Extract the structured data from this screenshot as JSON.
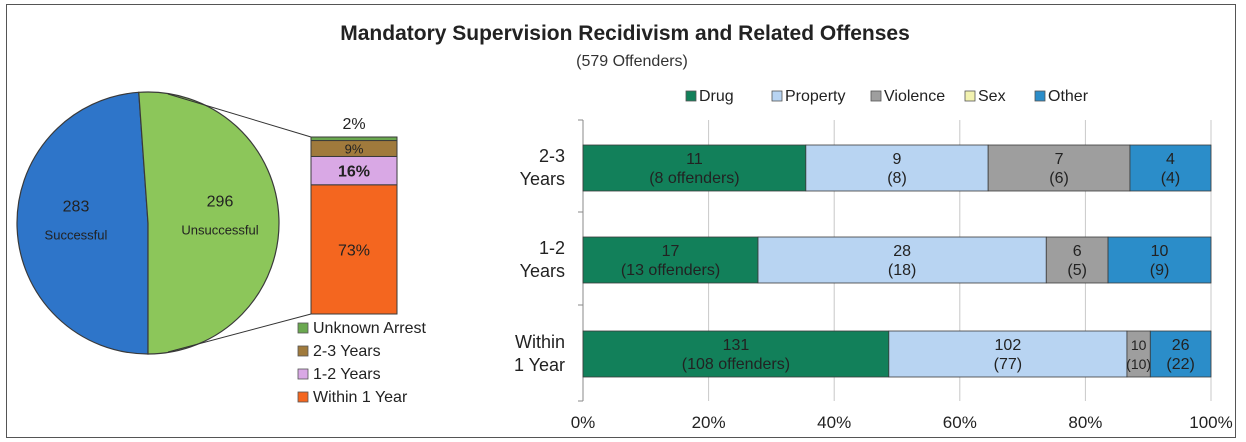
{
  "chart_data": [
    {
      "type": "pie",
      "title": "Mandatory Supervision Recidivism and Related Offenses",
      "subtitle": "(579 Offenders)",
      "slices": [
        {
          "label": "Successful",
          "value": 283,
          "color": "#2e75c9"
        },
        {
          "label": "Unsuccessful",
          "value": 296,
          "color": "#8cc65a"
        }
      ]
    },
    {
      "type": "bar",
      "stacked": true,
      "segments": [
        {
          "name": "Within 1 Year",
          "value": 73,
          "label": "73%",
          "color": "#f4661f"
        },
        {
          "name": "1-2 Years",
          "value": 16,
          "label": "16%",
          "color": "#d9a8e5"
        },
        {
          "name": "2-3 Years",
          "value": 9,
          "label": "9%",
          "color": "#a07a3c"
        },
        {
          "name": "Unknown Arrest",
          "value": 2,
          "label": "2%",
          "color": "#6aa84f"
        }
      ],
      "legend": [
        "Unknown Arrest",
        "2-3 Years",
        "1-2 Years",
        "Within 1 Year"
      ]
    },
    {
      "type": "bar",
      "orientation": "horizontal",
      "stacked": "percent",
      "legend_position": "top",
      "series": [
        {
          "name": "Drug",
          "color": "#12805a"
        },
        {
          "name": "Property",
          "color": "#b8d4f2"
        },
        {
          "name": "Violence",
          "color": "#9e9e9e"
        },
        {
          "name": "Sex",
          "color": "#f2f2b0"
        },
        {
          "name": "Other",
          "color": "#2b8dc9"
        }
      ],
      "categories": [
        {
          "label_lines": [
            "2-3",
            "Years"
          ],
          "segments": [
            {
              "series": "Drug",
              "value": 11,
              "line1": "11",
              "line2": "(8 offenders)"
            },
            {
              "series": "Property",
              "value": 9,
              "line1": "9",
              "line2": "(8)"
            },
            {
              "series": "Violence",
              "value": 7,
              "line1": "7",
              "line2": "(6)"
            },
            {
              "series": "Sex",
              "value": 0,
              "line1": "",
              "line2": ""
            },
            {
              "series": "Other",
              "value": 4,
              "line1": "4",
              "line2": "(4)"
            }
          ]
        },
        {
          "label_lines": [
            "1-2",
            "Years"
          ],
          "segments": [
            {
              "series": "Drug",
              "value": 17,
              "line1": "17",
              "line2": "(13 offenders)"
            },
            {
              "series": "Property",
              "value": 28,
              "line1": "28",
              "line2": "(18)"
            },
            {
              "series": "Violence",
              "value": 6,
              "line1": "6",
              "line2": "(5)"
            },
            {
              "series": "Sex",
              "value": 0,
              "line1": "",
              "line2": ""
            },
            {
              "series": "Other",
              "value": 10,
              "line1": "10",
              "line2": "(9)"
            }
          ]
        },
        {
          "label_lines": [
            "Within",
            "1 Year"
          ],
          "segments": [
            {
              "series": "Drug",
              "value": 131,
              "line1": "131",
              "line2": "(108 offenders)"
            },
            {
              "series": "Property",
              "value": 102,
              "line1": "102",
              "line2": "(77)"
            },
            {
              "series": "Violence",
              "value": 10,
              "line1": "10",
              "line2": "(10)"
            },
            {
              "series": "Sex",
              "value": 0,
              "line1": "",
              "line2": ""
            },
            {
              "series": "Other",
              "value": 26,
              "line1": "26",
              "line2": "(22)"
            }
          ]
        }
      ],
      "xlim": [
        0,
        100
      ],
      "x_ticks": [
        "0%",
        "20%",
        "40%",
        "60%",
        "80%",
        "100%"
      ],
      "grid": true
    }
  ]
}
